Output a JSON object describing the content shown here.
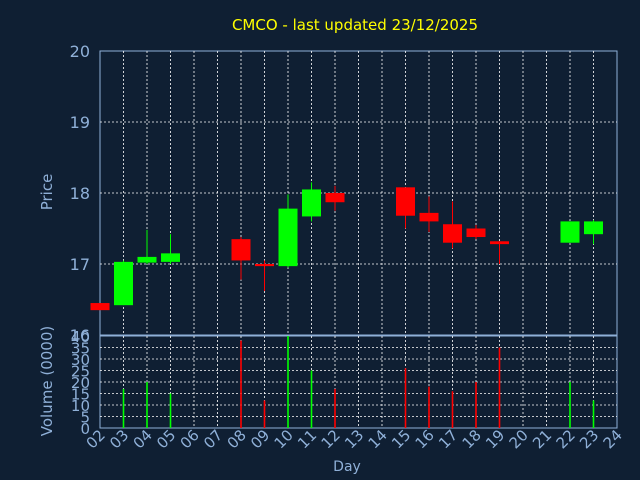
{
  "chart_data": [
    {
      "type": "candlestick",
      "title": "CMCO - last updated 23/12/2025",
      "ylabel": "Price",
      "ylim": [
        16,
        20
      ],
      "yticks": [
        16,
        17,
        18,
        19,
        20
      ],
      "grid": true,
      "colors": {
        "up": "#00ff00",
        "down": "#ff0000",
        "background": "#0f1f33",
        "grid": "#ffffff",
        "axis_text": "#8fb0d8",
        "title": "#ffff00"
      },
      "candles": [
        {
          "day": 2,
          "open": 16.45,
          "high": 16.45,
          "low": 16.35,
          "close": 16.35
        },
        {
          "day": 3,
          "open": 16.42,
          "high": 17.05,
          "low": 16.42,
          "close": 17.03
        },
        {
          "day": 4,
          "open": 17.02,
          "high": 17.48,
          "low": 17.0,
          "close": 17.1
        },
        {
          "day": 5,
          "open": 17.03,
          "high": 17.42,
          "low": 17.0,
          "close": 17.15
        },
        {
          "day": 8,
          "open": 17.35,
          "high": 17.38,
          "low": 16.78,
          "close": 17.05
        },
        {
          "day": 9,
          "open": 17.0,
          "high": 17.05,
          "low": 16.62,
          "close": 16.97
        },
        {
          "day": 10,
          "open": 16.97,
          "high": 17.98,
          "low": 16.95,
          "close": 17.78
        },
        {
          "day": 11,
          "open": 17.67,
          "high": 18.15,
          "low": 17.6,
          "close": 18.05
        },
        {
          "day": 12,
          "open": 18.0,
          "high": 18.1,
          "low": 17.75,
          "close": 17.87
        },
        {
          "day": 15,
          "open": 18.08,
          "high": 18.08,
          "low": 17.5,
          "close": 17.68
        },
        {
          "day": 16,
          "open": 17.72,
          "high": 17.95,
          "low": 17.45,
          "close": 17.6
        },
        {
          "day": 17,
          "open": 17.56,
          "high": 17.88,
          "low": 17.22,
          "close": 17.3
        },
        {
          "day": 18,
          "open": 17.5,
          "high": 17.55,
          "low": 17.35,
          "close": 17.38
        },
        {
          "day": 19,
          "open": 17.32,
          "high": 17.32,
          "low": 17.0,
          "close": 17.28
        },
        {
          "day": 22,
          "open": 17.3,
          "high": 17.6,
          "low": 17.3,
          "close": 17.6
        },
        {
          "day": 23,
          "open": 17.42,
          "high": 17.62,
          "low": 17.28,
          "close": 17.6
        }
      ]
    },
    {
      "type": "bar",
      "ylabel": "Volume (0000)",
      "xlabel": "Day",
      "ylim": [
        0,
        40
      ],
      "yticks": [
        0,
        5,
        10,
        15,
        20,
        25,
        30,
        35,
        40
      ],
      "grid": true,
      "categories": [
        "02",
        "03",
        "04",
        "05",
        "06",
        "07",
        "08",
        "09",
        "10",
        "11",
        "12",
        "13",
        "14",
        "15",
        "16",
        "17",
        "18",
        "19",
        "20",
        "21",
        "22",
        "23",
        "24"
      ],
      "bars": [
        {
          "day": 3,
          "value": 17,
          "direction": "up"
        },
        {
          "day": 4,
          "value": 20,
          "direction": "up"
        },
        {
          "day": 5,
          "value": 15,
          "direction": "up"
        },
        {
          "day": 8,
          "value": 38,
          "direction": "down"
        },
        {
          "day": 9,
          "value": 12,
          "direction": "down"
        },
        {
          "day": 10,
          "value": 40,
          "direction": "up"
        },
        {
          "day": 11,
          "value": 25,
          "direction": "up"
        },
        {
          "day": 12,
          "value": 17,
          "direction": "down"
        },
        {
          "day": 15,
          "value": 26,
          "direction": "down"
        },
        {
          "day": 16,
          "value": 18,
          "direction": "down"
        },
        {
          "day": 17,
          "value": 16,
          "direction": "down"
        },
        {
          "day": 18,
          "value": 20,
          "direction": "down"
        },
        {
          "day": 19,
          "value": 35,
          "direction": "down"
        },
        {
          "day": 22,
          "value": 20,
          "direction": "up"
        },
        {
          "day": 23,
          "value": 12,
          "direction": "up"
        }
      ]
    }
  ]
}
